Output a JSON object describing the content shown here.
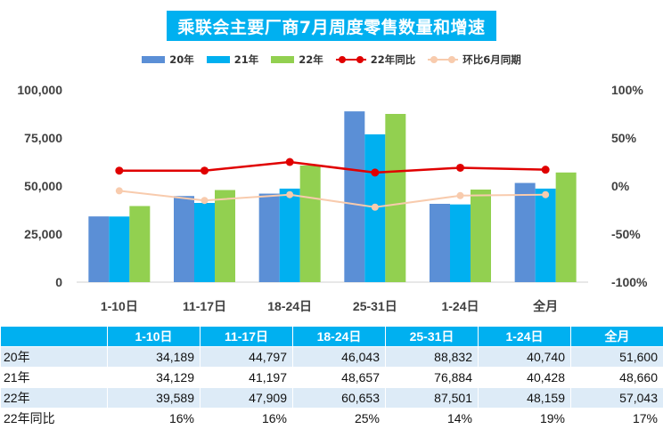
{
  "colors": {
    "bar_20": "#5b8fd6",
    "bar_21": "#00b0f0",
    "bar_22": "#92d050",
    "line_yoy": "#e00000",
    "line_mom": "#f8cbad",
    "title_bg": "#00b0f0",
    "header_bg": "#00b0f0",
    "row_alt": "#ddebf7"
  },
  "chart_data": {
    "type": "bar",
    "title": "乘联会主要厂商7月周度零售数量和增速",
    "categories": [
      "1-10日",
      "11-17日",
      "18-24日",
      "25-31日",
      "1-24日",
      "全月"
    ],
    "series": [
      {
        "name": "20年",
        "type": "bar",
        "values": [
          34189,
          44797,
          46043,
          88832,
          40740,
          51600
        ]
      },
      {
        "name": "21年",
        "type": "bar",
        "values": [
          34129,
          41197,
          48657,
          76884,
          40428,
          48660
        ]
      },
      {
        "name": "22年",
        "type": "bar",
        "values": [
          39589,
          47909,
          60653,
          87501,
          48159,
          57043
        ]
      },
      {
        "name": "22年同比",
        "type": "line",
        "axis": "right",
        "values": [
          16,
          16,
          25,
          14,
          19,
          17
        ]
      },
      {
        "name": "环比6月同期",
        "type": "line",
        "axis": "right",
        "values": [
          -5,
          -15,
          -9,
          -22,
          -10,
          -9
        ]
      }
    ],
    "y_left": {
      "range": [
        0,
        100000
      ],
      "ticks": [
        "0",
        "25,000",
        "50,000",
        "75,000",
        "100,000"
      ],
      "tick_values": [
        0,
        25000,
        50000,
        75000,
        100000
      ]
    },
    "y_right": {
      "range": [
        -100,
        100
      ],
      "ticks": [
        "-100%",
        "-50%",
        "0%",
        "50%",
        "100%"
      ],
      "tick_values": [
        -100,
        -50,
        0,
        50,
        100
      ]
    },
    "legend_position": "top",
    "grid": false
  },
  "table": {
    "headers": [
      "",
      "1-10日",
      "11-17日",
      "18-24日",
      "25-31日",
      "1-24日",
      "全月"
    ],
    "rows": [
      {
        "label": "20年",
        "cells": [
          "34,189",
          "44,797",
          "46,043",
          "88,832",
          "40,740",
          "51,600"
        ]
      },
      {
        "label": "21年",
        "cells": [
          "34,129",
          "41,197",
          "48,657",
          "76,884",
          "40,428",
          "48,660"
        ]
      },
      {
        "label": "22年",
        "cells": [
          "39,589",
          "47,909",
          "60,653",
          "87,501",
          "48,159",
          "57,043"
        ]
      },
      {
        "label": "22年同比",
        "cells": [
          "16%",
          "16%",
          "25%",
          "14%",
          "19%",
          "17%"
        ]
      }
    ]
  }
}
